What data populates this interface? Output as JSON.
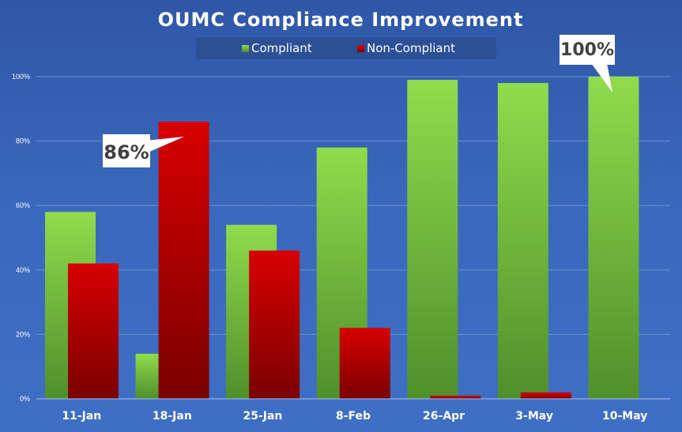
{
  "chart_data": {
    "type": "bar",
    "title": "OUMC Compliance Improvement",
    "categories": [
      "11-Jan",
      "18-Jan",
      "25-Jan",
      "8-Feb",
      "26-Apr",
      "3-May",
      "10-May"
    ],
    "series": [
      {
        "name": "Compliant",
        "values": [
          58,
          14,
          54,
          78,
          99,
          98,
          100
        ],
        "color": "#7ed040"
      },
      {
        "name": "Non-Compliant",
        "values": [
          42,
          86,
          46,
          22,
          1,
          2,
          0
        ],
        "color": "#c00000"
      }
    ],
    "yticks": [
      "0%",
      "20%",
      "40%",
      "60%",
      "80%",
      "100%"
    ],
    "ylim": [
      0,
      100
    ],
    "grid": true,
    "legend": "top-center",
    "annotations": [
      {
        "text": "86%",
        "series": "Non-Compliant",
        "category": "18-Jan"
      },
      {
        "text": "100%",
        "series": "Compliant",
        "category": "10-May"
      }
    ],
    "background_color": "#3a67bb"
  }
}
